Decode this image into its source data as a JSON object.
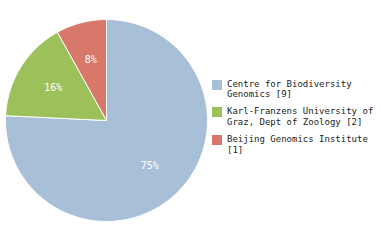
{
  "chart_data": {
    "type": "pie",
    "categories": [
      "Centre for Biodiversity\nGenomics [9]",
      "Karl-Franzens University of\nGraz, Dept of Zoology [2]",
      "Beijing Genomics Institute [1]"
    ],
    "values": [
      75,
      16,
      8
    ],
    "value_labels": [
      "75%",
      "16%",
      "8%"
    ],
    "colors": [
      "#a8bfd8",
      "#9dc15a",
      "#d8786a"
    ],
    "data_labels": true,
    "legend": "right"
  }
}
